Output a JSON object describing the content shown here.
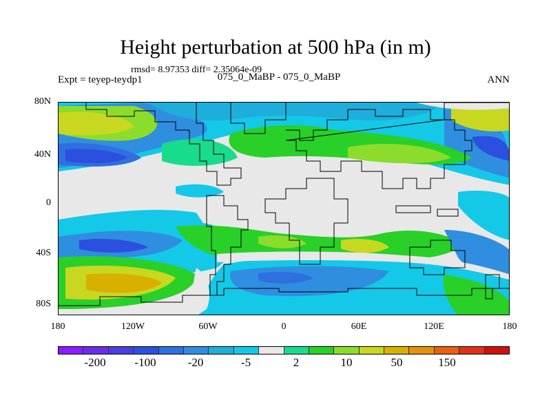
{
  "title": "Height perturbation at 500 hPa (in m)",
  "stats_line": "rmsd= 8.97353  diff= 2.35064e-09",
  "experiment": "Expt = teyep-teydp1",
  "comparison": "075_0_MaBP - 075_0_MaBP",
  "season": "ANN",
  "lat_ticks": [
    "80N",
    "40N",
    "0",
    "40S",
    "80S"
  ],
  "lon_ticks": [
    "180",
    "120W",
    "60W",
    "0",
    "60E",
    "120E",
    "180"
  ],
  "colorbar": {
    "colors": [
      "#8a1cff",
      "#6a2ee8",
      "#4a3fe0",
      "#2b50e0",
      "#2f6fe0",
      "#2f8ee0",
      "#1eaedc",
      "#14c8e8",
      "#e8e8e8",
      "#18dc8c",
      "#28d028",
      "#8cdc2c",
      "#c8d820",
      "#d8b000",
      "#e89010",
      "#e86010",
      "#e03018",
      "#d01010"
    ],
    "labels": [
      "-200",
      "-100",
      "-20",
      "-5",
      "2",
      "10",
      "50",
      "150"
    ]
  },
  "map_colors": {
    "background": "#e8e8e8",
    "cyan": "#14c8e8",
    "light_blue": "#1eaedc",
    "blue": "#2f8ee0",
    "mid_blue": "#2f6fe0",
    "dark_blue": "#2b50e0",
    "green_light": "#18dc8c",
    "green": "#28d028",
    "yellow_green": "#8cdc2c",
    "yellow": "#c8d820",
    "orange": "#d8b000"
  }
}
